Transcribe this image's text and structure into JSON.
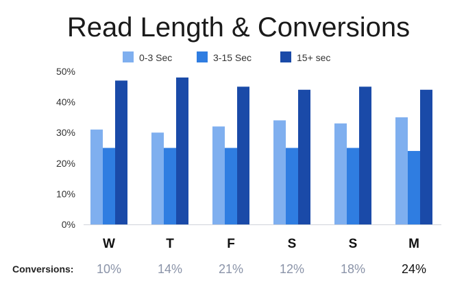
{
  "chart_data": {
    "type": "bar",
    "title": "Read Length & Conversions",
    "categories": [
      "W",
      "T",
      "F",
      "S",
      "S",
      "M"
    ],
    "series": [
      {
        "name": "0-3 Sec",
        "values": [
          31,
          30,
          32,
          34,
          33,
          35
        ],
        "color": "#7fafef"
      },
      {
        "name": "3-15 Sec",
        "values": [
          25,
          25,
          25,
          25,
          25,
          24
        ],
        "color": "#2f7de1"
      },
      {
        "name": "15+ sec",
        "values": [
          47,
          48,
          45,
          44,
          45,
          44
        ],
        "color": "#1a4aa8"
      }
    ],
    "ylim": [
      0,
      50
    ],
    "yticks": [
      "0%",
      "10%",
      "20%",
      "30%",
      "40%",
      "50%"
    ],
    "grid": false,
    "legend": "top",
    "conversions": {
      "label": "Conversions:",
      "values": [
        "10%",
        "14%",
        "21%",
        "12%",
        "18%",
        "24%"
      ],
      "colors": [
        "#8a93a8",
        "#8a93a8",
        "#8a93a8",
        "#8a93a8",
        "#8a93a8",
        "#111111"
      ]
    }
  }
}
